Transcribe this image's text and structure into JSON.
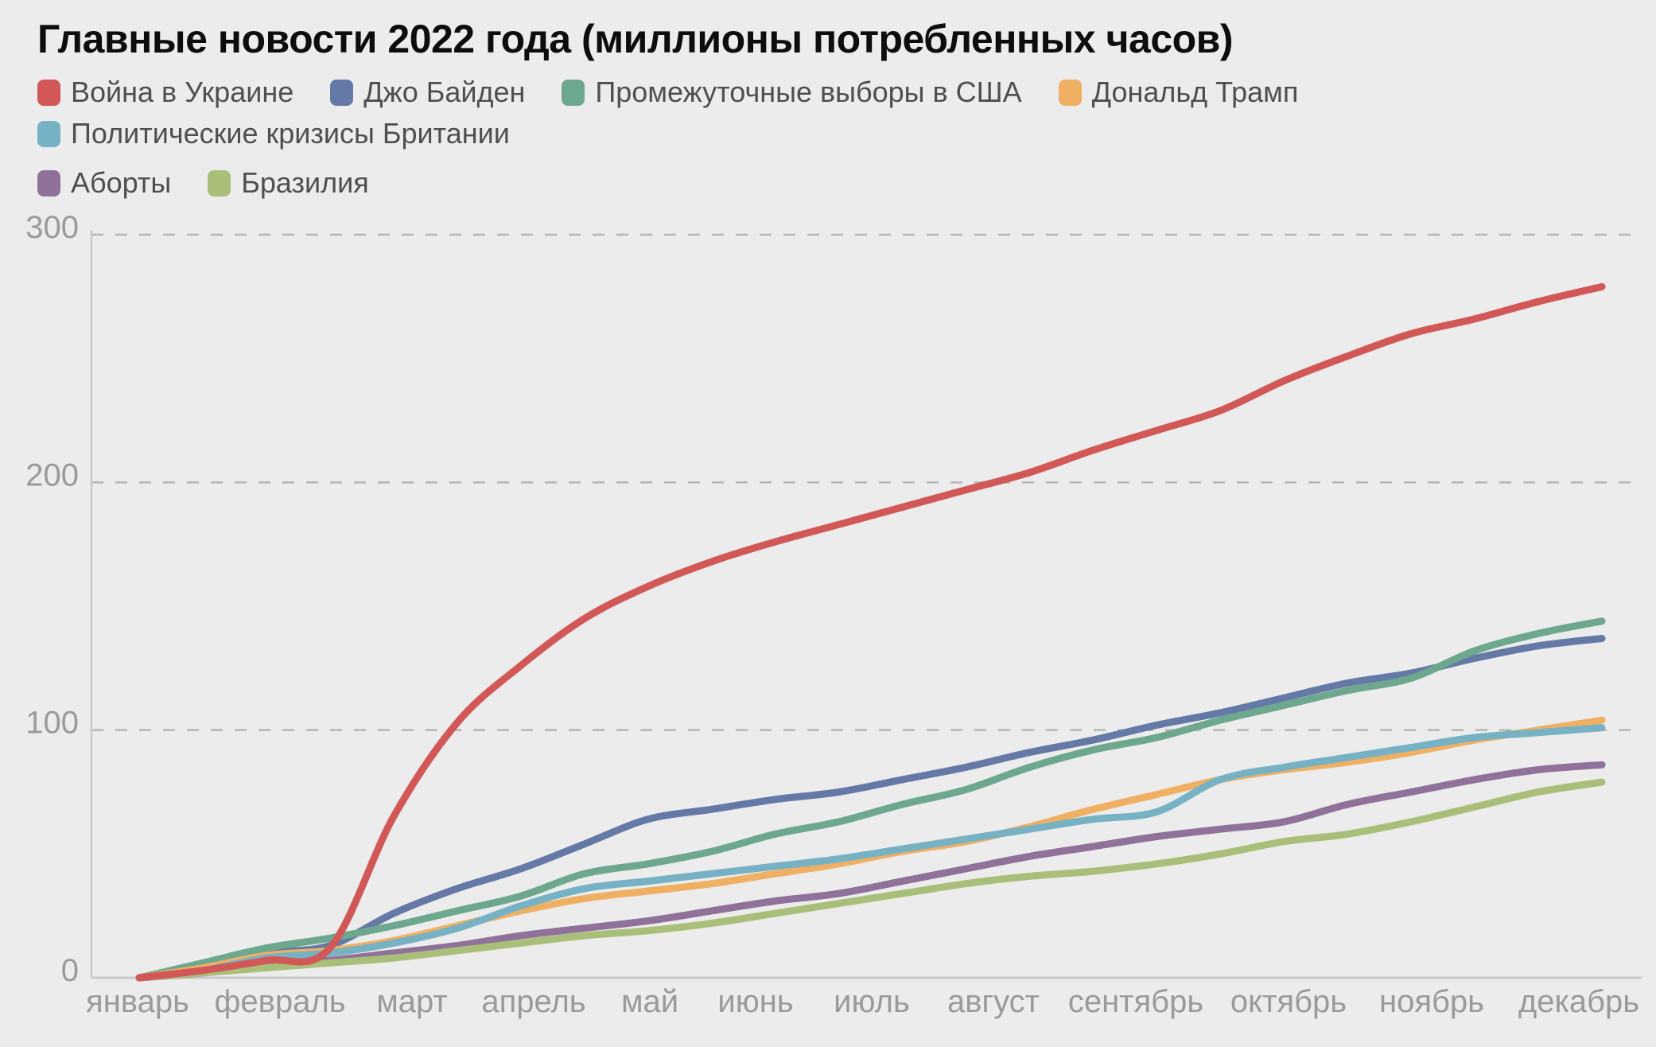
{
  "page": {
    "background": "#ececec",
    "title": "Главные новости 2022 года (миллионы потребленных часов)"
  },
  "chart_data": {
    "type": "line",
    "title": "Главные новости 2022 года (миллионы потребленных часов)",
    "subtitle": "",
    "legend_position": "top",
    "grid": "horizontal-dashed",
    "x_axis": {
      "label": "",
      "tick_labels": [
        "январь",
        "февраль",
        "март",
        "апрель",
        "май",
        "июнь",
        "июль",
        "август",
        "сентябрь",
        "октябрь",
        "ноябрь",
        "декабрь"
      ],
      "note": "cumulative over the year 2022, 24 evenly spaced samples Jan 1 – Dec 31"
    },
    "y_axis": {
      "label": "",
      "ticks": [
        0,
        100,
        200,
        300
      ],
      "range": [
        0,
        300
      ]
    },
    "colors": {
      "background": "#ececec",
      "gridline": "#b5b5b5",
      "axis_line": "#c9c9c9",
      "tick_text": "#9a9a9a",
      "legend_text": "#4f4f4f",
      "title_text": "#0d0d0d"
    },
    "series": [
      {
        "id": "war-ukraine",
        "name": "Война в Украине",
        "color": "#d25757",
        "values": [
          0,
          3,
          7,
          12,
          65,
          103,
          126,
          145,
          158,
          168,
          176,
          183,
          190,
          197,
          204,
          213,
          221,
          229,
          241,
          251,
          260,
          266,
          273,
          279
        ]
      },
      {
        "id": "joe-biden",
        "name": "Джо Байден",
        "color": "#6479a6",
        "values": [
          0,
          5,
          10,
          13,
          26,
          36,
          44,
          54,
          64,
          68,
          72,
          75,
          80,
          85,
          91,
          96,
          102,
          107,
          113,
          119,
          123,
          129,
          134,
          137
        ]
      },
      {
        "id": "us-midterms",
        "name": "Промежуточные выборы в США",
        "color": "#6ca78e",
        "values": [
          0,
          6,
          12,
          16,
          21,
          27,
          33,
          42,
          46,
          51,
          58,
          63,
          70,
          76,
          85,
          92,
          97,
          104,
          110,
          116,
          121,
          132,
          139,
          144
        ]
      },
      {
        "id": "donald-trump",
        "name": "Дональд Трамп",
        "color": "#f0b064",
        "values": [
          0,
          4,
          9,
          11,
          15,
          21,
          27,
          32,
          35,
          38,
          42,
          46,
          51,
          55,
          61,
          68,
          74,
          80,
          84,
          87,
          91,
          96,
          100,
          104
        ]
      },
      {
        "id": "uk-political-crises",
        "name": "Политические кризисы Британии",
        "color": "#76b2c3",
        "values": [
          0,
          3,
          8,
          10,
          14,
          20,
          29,
          36,
          39,
          42,
          45,
          48,
          52,
          56,
          60,
          64,
          67,
          80,
          85,
          89,
          93,
          97,
          99,
          101
        ]
      },
      {
        "id": "abortion",
        "name": "Аборты",
        "color": "#8f7199",
        "values": [
          0,
          2,
          5,
          7,
          10,
          13,
          17,
          20,
          23,
          27,
          31,
          34,
          39,
          44,
          49,
          53,
          57,
          60,
          63,
          70,
          75,
          80,
          84,
          86
        ]
      },
      {
        "id": "brazil",
        "name": "Бразилия",
        "color": "#a9bf79",
        "values": [
          0,
          2,
          4,
          6,
          8,
          11,
          14,
          17,
          19,
          22,
          26,
          30,
          34,
          38,
          41,
          43,
          46,
          50,
          55,
          58,
          63,
          69,
          75,
          79
        ]
      }
    ]
  }
}
